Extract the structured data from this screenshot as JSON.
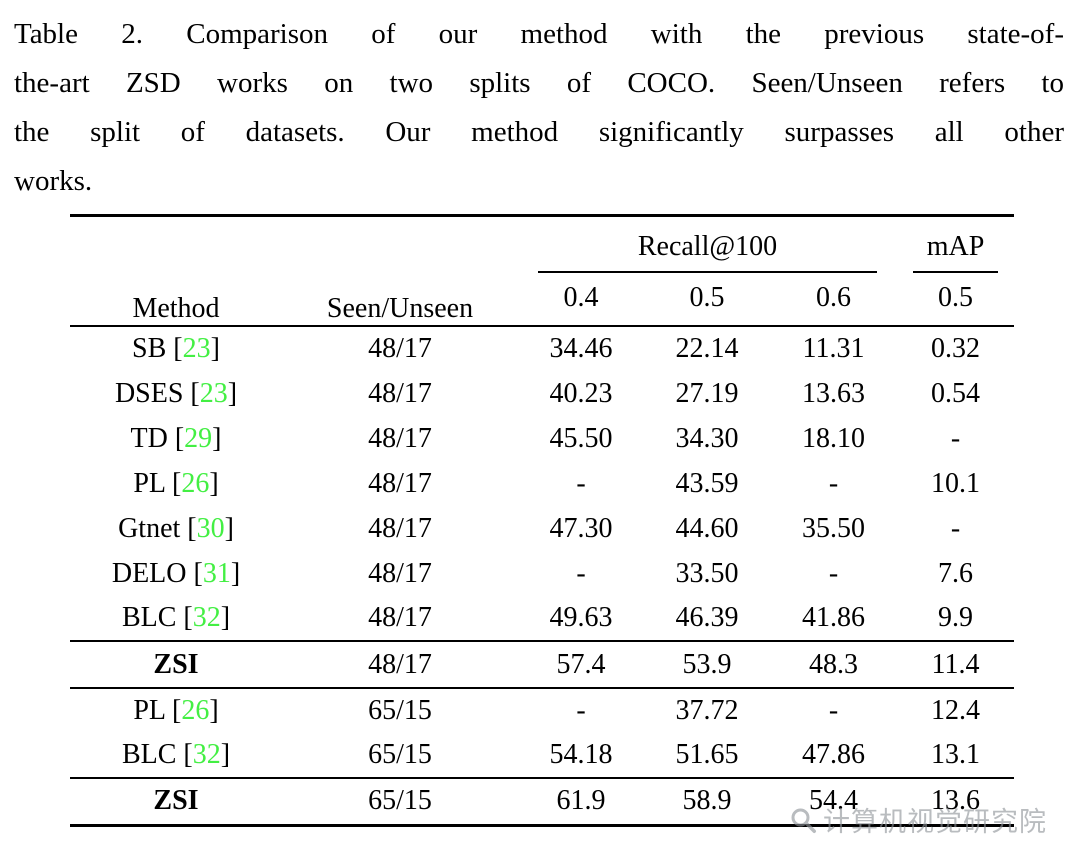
{
  "caption": {
    "full_text": "Table 2. Comparison of our method with the previous state-of-the-art ZSD works on two splits of COCO. Seen/Unseen refers to the split of datasets. Our method significantly surpasses all other works.",
    "lines": [
      "Table 2. Comparison of our method with the previous state-of-",
      "the-art ZSD works on two splits of COCO. Seen/Unseen refers to",
      "the split of datasets. Our method significantly surpasses all other",
      "works."
    ]
  },
  "colors": {
    "cite": "#43ef43",
    "watermark": "#8f9499"
  },
  "table": {
    "headers": {
      "method": "Method",
      "seen_unseen": "Seen/Unseen",
      "recall_group": "Recall@100",
      "recall_subs": [
        "0.4",
        "0.5",
        "0.6"
      ],
      "map_group": "mAP",
      "map_sub": "0.5"
    },
    "sections": [
      {
        "rows": [
          {
            "name": "SB",
            "cite": "23",
            "split": "48/17",
            "values": [
              "34.46",
              "22.14",
              "11.31",
              "0.32"
            ],
            "bold": false
          },
          {
            "name": "DSES",
            "cite": "23",
            "split": "48/17",
            "values": [
              "40.23",
              "27.19",
              "13.63",
              "0.54"
            ],
            "bold": false
          },
          {
            "name": "TD",
            "cite": "29",
            "split": "48/17",
            "values": [
              "45.50",
              "34.30",
              "18.10",
              "-"
            ],
            "bold": false
          },
          {
            "name": "PL",
            "cite": "26",
            "split": "48/17",
            "values": [
              "-",
              "43.59",
              "-",
              "10.1"
            ],
            "bold": false
          },
          {
            "name": "Gtnet",
            "cite": "30",
            "split": "48/17",
            "values": [
              "47.30",
              "44.60",
              "35.50",
              "-"
            ],
            "bold": false
          },
          {
            "name": "DELO",
            "cite": "31",
            "split": "48/17",
            "values": [
              "-",
              "33.50",
              "-",
              "7.6"
            ],
            "bold": false
          },
          {
            "name": "BLC",
            "cite": "32",
            "split": "48/17",
            "values": [
              "49.63",
              "46.39",
              "41.86",
              "9.9"
            ],
            "bold": false
          },
          {
            "name": "ZSI",
            "cite": null,
            "split": "48/17",
            "values": [
              "57.4",
              "53.9",
              "48.3",
              "11.4"
            ],
            "bold": true
          }
        ]
      },
      {
        "rows": [
          {
            "name": "PL",
            "cite": "26",
            "split": "65/15",
            "values": [
              "-",
              "37.72",
              "-",
              "12.4"
            ],
            "bold": false
          },
          {
            "name": "BLC",
            "cite": "32",
            "split": "65/15",
            "values": [
              "54.18",
              "51.65",
              "47.86",
              "13.1"
            ],
            "bold": false
          },
          {
            "name": "ZSI",
            "cite": null,
            "split": "65/15",
            "values": [
              "61.9",
              "58.9",
              "54.4",
              "13.6"
            ],
            "bold": true
          }
        ]
      }
    ]
  },
  "watermark": {
    "text": "计算机视觉研究院",
    "icon": "magnifier-icon"
  }
}
